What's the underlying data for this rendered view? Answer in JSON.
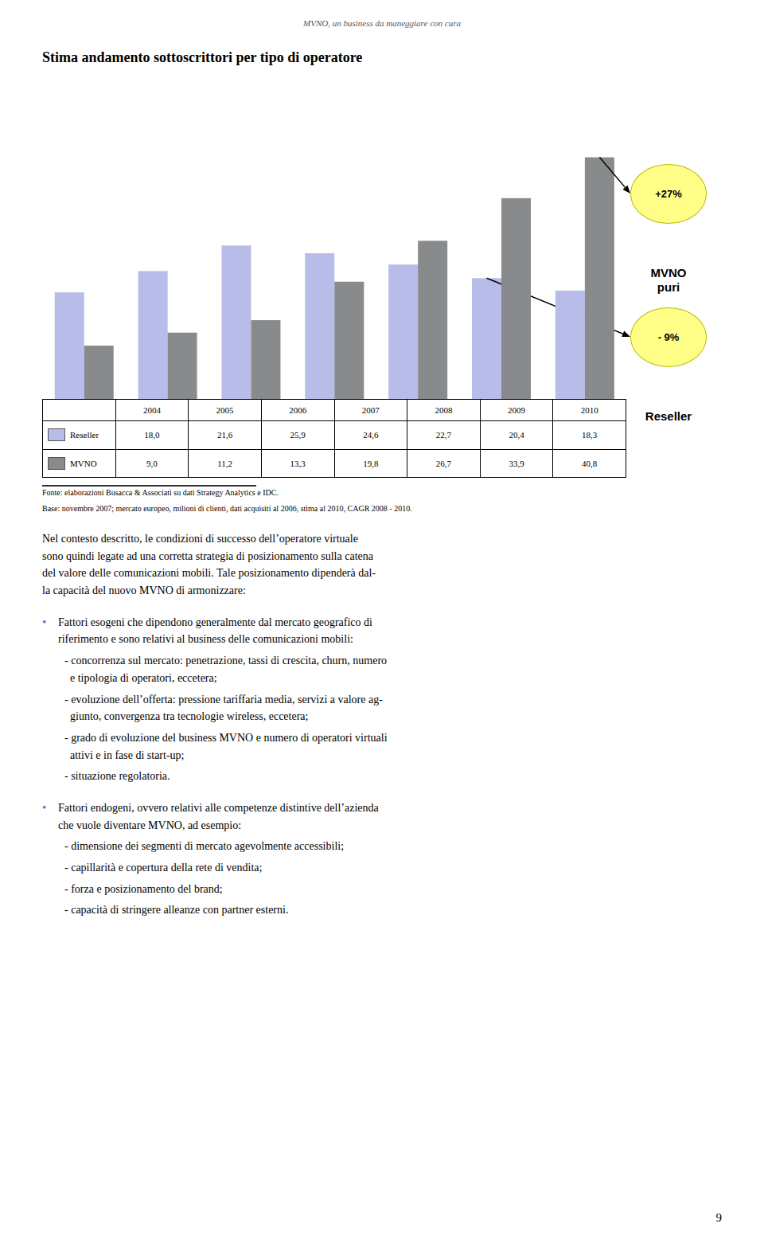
{
  "chart_data": {
    "type": "bar",
    "title": "Stima andamento sottoscrittori per tipo di operatore",
    "header": "MVNO, un business da maneggiare con cura",
    "categories": [
      "2004",
      "2005",
      "2006",
      "2007",
      "2008",
      "2009",
      "2010"
    ],
    "series": [
      {
        "name": "Reseller",
        "color": "#b8bce8",
        "values": [
          18.0,
          21.6,
          25.9,
          24.6,
          22.7,
          20.4,
          18.3
        ],
        "value_labels": [
          "18,0",
          "21,6",
          "25,9",
          "24,6",
          "22,7",
          "20,4",
          "18,3"
        ]
      },
      {
        "name": "MVNO",
        "color": "#888a8c",
        "values": [
          9.0,
          11.2,
          13.3,
          19.8,
          26.7,
          33.9,
          40.8
        ],
        "value_labels": [
          "9,0",
          "11,2",
          "13,3",
          "19,8",
          "26,7",
          "33,9",
          "40,8"
        ]
      }
    ],
    "ylim": [
      0,
      48
    ],
    "tick_labels": false,
    "grid": false,
    "data_labels": true,
    "annotations": [
      {
        "text": "+27%",
        "caption": "MVNO\npuri",
        "series": "MVNO",
        "category": "2010"
      },
      {
        "text": "- 9%",
        "caption": "Reseller",
        "series": "Reseller",
        "category": "2009"
      }
    ],
    "source": [
      "Fonte: elaborazioni Busacca & Associati su dati Strategy Analytics e IDC.",
      "Base: novembre 2007; mercato europeo, milioni di clienti, dati acquisiti al 2006, stima al 2010, CAGR 2008 - 2010."
    ],
    "body": {
      "intro": "Nel contesto descritto, le condizioni di successo dell’operatore virtuale\nsono quindi legate ad una corretta strategia di posizionamento sulla catena\ndel valore delle comunicazioni mobili. Tale posizionamento dipenderà dal-\nla capacità del nuovo MVNO di armonizzare:",
      "bullet": "•",
      "bullets": [
        {
          "text": "Fattori esogeni che dipendono generalmente dal mercato geografico di\nriferimento e sono relativi al business delle comunicazioni mobili:",
          "items": [
            "- concorrenza sul mercato: penetrazione, tassi di crescita, churn, numero\n  e tipologia di operatori, eccetera;",
            "- evoluzione dell’offerta: pressione tariffaria media, servizi a valore ag-\n  giunto, convergenza tra tecnologie wireless, eccetera;",
            "- grado di evoluzione del business MVNO e numero di operatori virtuali\n  attivi e in fase di start-up;",
            "- situazione regolatoria."
          ]
        },
        {
          "text": "Fattori endogeni, ovvero relativi alle competenze distintive dell’azienda\nche vuole diventare MVNO, ad esempio:",
          "items": [
            "- dimensione dei segmenti di mercato agevolmente accessibili;",
            "- capillarità e copertura della rete di vendita;",
            "- forza e posizionamento del brand;",
            "- capacità di stringere alleanze con partner esterni."
          ]
        }
      ]
    },
    "page_number": "9"
  }
}
